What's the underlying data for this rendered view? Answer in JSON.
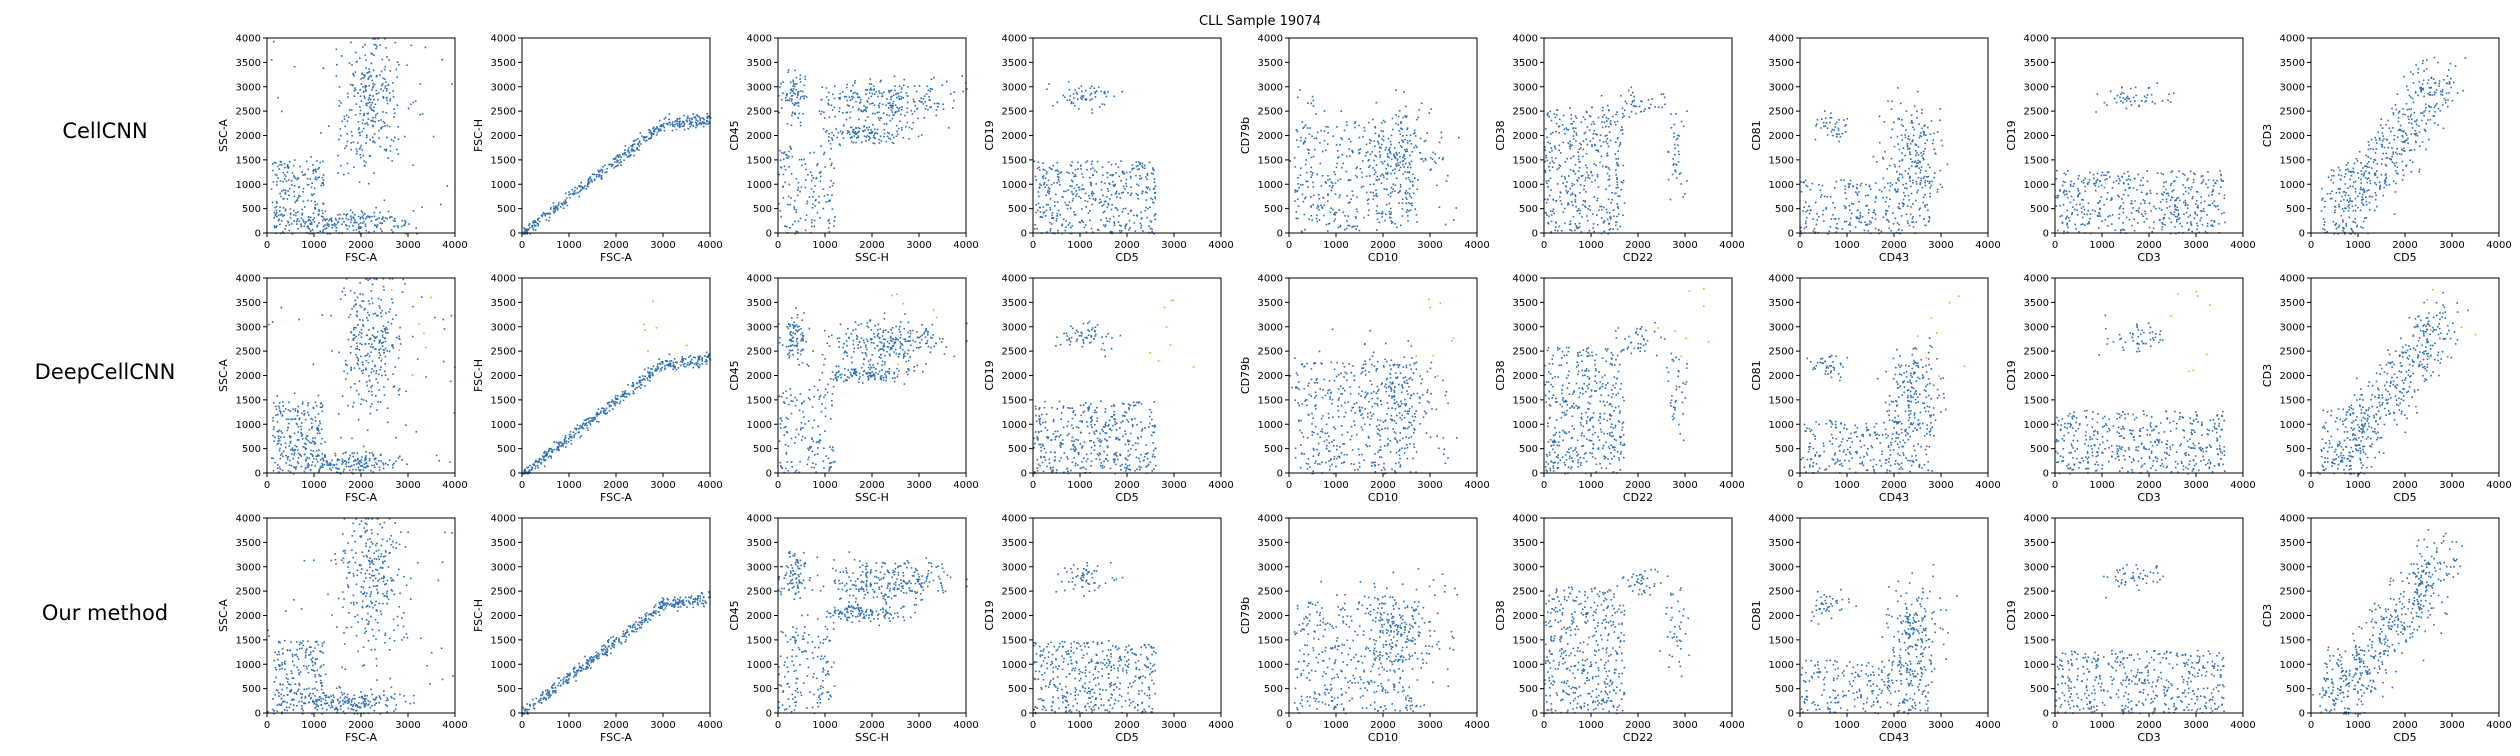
{
  "figure": {
    "title": "CLL Sample 19074",
    "rows": [
      "CellCNN",
      "DeepCellCNN",
      "Our method"
    ]
  },
  "colors": {
    "points": "#2b6fb3",
    "highlight": "#f4a21e",
    "axis": "#000000"
  },
  "chart_data": {
    "type": "scatter",
    "axis_range": [
      0,
      4000
    ],
    "ticks": [
      0,
      500,
      1000,
      1500,
      2000,
      2500,
      3000,
      3500,
      4000
    ],
    "xticks": [
      0,
      1000,
      2000,
      3000,
      4000
    ],
    "panels": [
      {
        "xlabel": "FSC-A",
        "ylabel": "SSC-A"
      },
      {
        "xlabel": "FSC-A",
        "ylabel": "FSC-H"
      },
      {
        "xlabel": "SSC-H",
        "ylabel": "CD45"
      },
      {
        "xlabel": "CD5",
        "ylabel": "CD19"
      },
      {
        "xlabel": "CD10",
        "ylabel": "CD79b"
      },
      {
        "xlabel": "CD22",
        "ylabel": "CD38"
      },
      {
        "xlabel": "CD43",
        "ylabel": "CD81"
      },
      {
        "xlabel": "CD3",
        "ylabel": "CD19"
      },
      {
        "xlabel": "CD5",
        "ylabel": "CD3"
      }
    ]
  }
}
